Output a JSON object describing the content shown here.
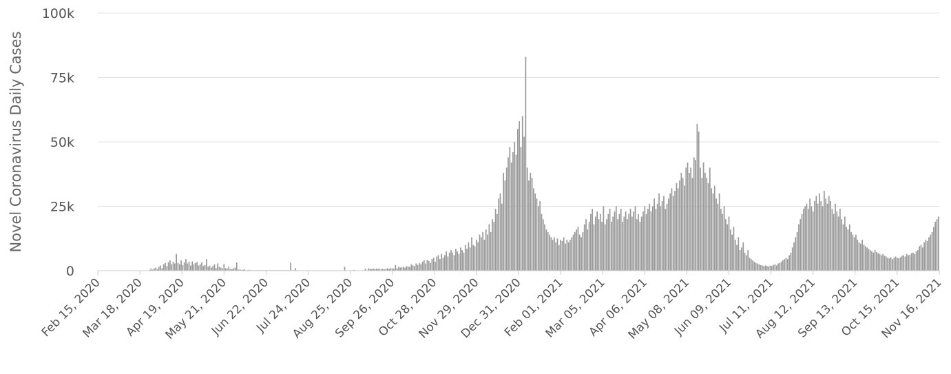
{
  "chart_data": {
    "type": "bar",
    "title": "",
    "xlabel": "",
    "ylabel": "Novel Coronavirus Daily Cases",
    "ylim": [
      0,
      100000
    ],
    "y_ticks": [
      0,
      25000,
      50000,
      75000,
      100000
    ],
    "y_tick_labels": [
      "0",
      "25k",
      "50k",
      "75k",
      "100k"
    ],
    "x_range": [
      "2020-02-15",
      "2021-11-16"
    ],
    "x_tick_labels": [
      "Feb 15, 2020",
      "Mar 18, 2020",
      "Apr 19, 2020",
      "May 21, 2020",
      "Jun 22, 2020",
      "Jul 24, 2020",
      "Aug 25, 2020",
      "Sep 26, 2020",
      "Oct 28, 2020",
      "Nov 29, 2020",
      "Dec 31, 2020",
      "Feb 01, 2021",
      "Mar 05, 2021",
      "Apr 06, 2021",
      "May 08, 2021",
      "Jun 09, 2021",
      "Jul 11, 2021",
      "Aug 12, 2021",
      "Sep 13, 2021",
      "Oct 15, 2021",
      "Nov 16, 2021"
    ],
    "grid": true,
    "bar_color": "#999999",
    "series": [
      {
        "values": [
          0,
          0,
          0,
          0,
          0,
          0,
          0,
          0,
          0,
          0,
          0,
          0,
          0,
          0,
          0,
          0,
          0,
          0,
          0,
          0,
          0,
          0,
          0,
          0,
          0,
          0,
          0,
          0,
          0,
          0,
          0,
          0,
          300,
          800,
          400,
          900,
          1200,
          600,
          1500,
          2000,
          1000,
          2500,
          3000,
          1800,
          3200,
          4000,
          2500,
          3500,
          2800,
          6500,
          3000,
          2500,
          4000,
          2200,
          3200,
          4500,
          2800,
          3500,
          2000,
          3600,
          2500,
          3000,
          3400,
          2000,
          2500,
          3200,
          1800,
          2200,
          4500,
          1500,
          2000,
          1200,
          1800,
          2500,
          1000,
          2800,
          1500,
          1200,
          900,
          2600,
          1000,
          800,
          1600,
          600,
          700,
          900,
          1200,
          3200,
          400,
          500,
          300,
          400,
          500,
          200,
          200,
          300,
          200,
          200,
          200,
          200,
          200,
          200,
          200,
          200,
          200,
          200,
          200,
          200,
          200,
          200,
          200,
          200,
          200,
          200,
          200,
          200,
          200,
          200,
          200,
          200,
          200,
          3100,
          200,
          200,
          1000,
          200,
          150,
          150,
          150,
          150,
          150,
          150,
          150,
          150,
          150,
          150,
          150,
          150,
          150,
          150,
          150,
          150,
          150,
          150,
          150,
          150,
          150,
          150,
          150,
          150,
          150,
          150,
          150,
          150,
          150,
          1500,
          150,
          150,
          150,
          150,
          150,
          300,
          150,
          150,
          150,
          150,
          150,
          200,
          800,
          150,
          900,
          800,
          600,
          800,
          700,
          800,
          700,
          700,
          600,
          700,
          500,
          800,
          900,
          700,
          1000,
          900,
          800,
          2200,
          900,
          1500,
          1200,
          1300,
          1500,
          1200,
          1800,
          1600,
          1500,
          2500,
          2000,
          1800,
          2800,
          2200,
          3000,
          2500,
          3500,
          4000,
          2800,
          4200,
          3800,
          3000,
          4500,
          5000,
          3500,
          5500,
          6000,
          4500,
          6500,
          5000,
          6000,
          7500,
          5500,
          7000,
          8000,
          7000,
          6000,
          8500,
          7500,
          6500,
          9000,
          8000,
          7000,
          10000,
          8500,
          11000,
          9000,
          13000,
          10000,
          9500,
          12000,
          11000,
          14000,
          13000,
          15000,
          12000,
          16000,
          14000,
          18000,
          15000,
          20000,
          19000,
          24000,
          22000,
          28000,
          30000,
          26000,
          38000,
          35000,
          40000,
          44000,
          48000,
          42000,
          46000,
          50000,
          45000,
          55000,
          58000,
          48000,
          60000,
          52000,
          83000,
          40000,
          35000,
          38000,
          36000,
          32000,
          30000,
          28000,
          25000,
          27000,
          22000,
          20000,
          18000,
          16000,
          15000,
          14000,
          13000,
          12000,
          13000,
          11000,
          12500,
          10000,
          12000,
          11500,
          13000,
          10500,
          12000,
          11000,
          12000,
          13000,
          14000,
          15000,
          16000,
          17000,
          14000,
          13000,
          15000,
          18000,
          20000,
          16000,
          19000,
          22000,
          24000,
          18000,
          21000,
          23000,
          20000,
          22000,
          19000,
          25000,
          18000,
          20000,
          22000,
          24000,
          19000,
          21000,
          23000,
          25000,
          20000,
          22000,
          24000,
          19000,
          21000,
          23000,
          20000,
          22000,
          24000,
          21000,
          23000,
          25000,
          20000,
          22000,
          19000,
          21000,
          23000,
          25000,
          22000,
          24000,
          26000,
          23000,
          25000,
          28000,
          24000,
          26000,
          30000,
          25000,
          27000,
          29000,
          24000,
          26000,
          28000,
          30000,
          32000,
          29000,
          31000,
          34000,
          32000,
          35000,
          38000,
          36000,
          33000,
          40000,
          42000,
          38000,
          40000,
          36000,
          44000,
          43000,
          57000,
          54000,
          40000,
          36000,
          42000,
          38000,
          36000,
          34000,
          40000,
          32000,
          30000,
          33000,
          28000,
          26000,
          30000,
          24000,
          22000,
          25000,
          20000,
          18000,
          21000,
          16000,
          14000,
          17000,
          12000,
          10000,
          13000,
          8000,
          9000,
          11000,
          7000,
          6000,
          8000,
          5000,
          4500,
          4000,
          3500,
          3000,
          2800,
          2500,
          2200,
          2000,
          1800,
          2000,
          1800,
          1600,
          2000,
          1800,
          2200,
          2500,
          2000,
          2800,
          3000,
          3500,
          4000,
          4500,
          5000,
          4500,
          6000,
          7000,
          9000,
          11000,
          13000,
          15000,
          18000,
          20000,
          22000,
          24000,
          25000,
          26000,
          24000,
          28000,
          25000,
          23000,
          27000,
          29000,
          26000,
          30000,
          27000,
          25000,
          31000,
          28000,
          26000,
          29000,
          27000,
          24000,
          22000,
          26000,
          23000,
          21000,
          24000,
          20000,
          18000,
          21000,
          17000,
          16000,
          18000,
          15000,
          14000,
          13000,
          14000,
          12000,
          11000,
          10500,
          12000,
          10000,
          9500,
          9000,
          8500,
          8000,
          7500,
          7000,
          8000,
          7200,
          6800,
          6500,
          6000,
          6500,
          5800,
          5500,
          5000,
          4800,
          5200,
          4500,
          5000,
          5500,
          5000,
          4800,
          5200,
          5800,
          6000,
          5500,
          6500,
          6000,
          6200,
          6800,
          7000,
          6500,
          7500,
          8000,
          9500,
          10000,
          9000,
          11000,
          12000,
          11500,
          13000,
          14000,
          15000,
          17000,
          19000,
          20000,
          21000
        ]
      }
    ]
  }
}
